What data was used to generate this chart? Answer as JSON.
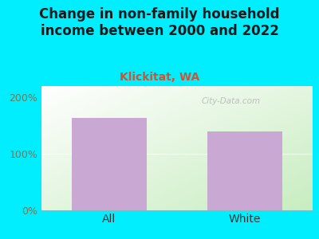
{
  "title": "Change in non-family household\nincome between 2000 and 2022",
  "subtitle": "Klickitat, WA",
  "categories": [
    "All",
    "White"
  ],
  "values": [
    163,
    140
  ],
  "bar_color": "#c9a8d4",
  "title_color": "#1a1a1a",
  "subtitle_color": "#cc5533",
  "tick_label_color": "#777755",
  "xlabel_color": "#333333",
  "background_outer": "#00eeff",
  "ylim": [
    0,
    220
  ],
  "yticks": [
    0,
    100,
    200
  ],
  "ytick_labels": [
    "0%",
    "100%",
    "200%"
  ],
  "title_fontsize": 12,
  "subtitle_fontsize": 10,
  "tick_fontsize": 9,
  "xlabel_fontsize": 10,
  "watermark": "City-Data.com"
}
